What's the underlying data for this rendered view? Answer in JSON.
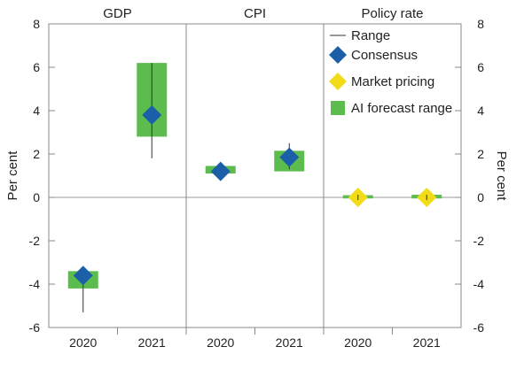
{
  "chart_data": {
    "type": "range",
    "panels": [
      {
        "title": "GDP",
        "items": [
          {
            "year": "2020",
            "range_low": -5.3,
            "range_high": -3.3,
            "consensus": -3.6,
            "ai_low": -4.2,
            "ai_high": -3.4,
            "market": null
          },
          {
            "year": "2021",
            "range_low": 1.8,
            "range_high": 6.2,
            "consensus": 3.8,
            "ai_low": 2.8,
            "ai_high": 6.2,
            "market": null
          }
        ]
      },
      {
        "title": "CPI",
        "items": [
          {
            "year": "2020",
            "range_low": 1.1,
            "range_high": 1.4,
            "consensus": 1.2,
            "ai_low": 1.1,
            "ai_high": 1.45,
            "market": null
          },
          {
            "year": "2021",
            "range_low": 1.3,
            "range_high": 2.5,
            "consensus": 1.85,
            "ai_low": 1.2,
            "ai_high": 2.15,
            "market": null
          }
        ]
      },
      {
        "title": "Policy rate",
        "items": [
          {
            "year": "2020",
            "range_low": -0.05,
            "range_high": 0.05,
            "consensus": null,
            "ai_low": -0.05,
            "ai_high": 0.1,
            "market": 0.0
          },
          {
            "year": "2021",
            "range_low": -0.05,
            "range_high": 0.05,
            "consensus": null,
            "ai_low": -0.05,
            "ai_high": 0.12,
            "market": 0.0
          }
        ]
      }
    ],
    "left_axis": {
      "label": "Per cent",
      "ylim": [
        -6,
        8
      ],
      "ticks": [
        "-6",
        "-4",
        "-2",
        "0",
        "2",
        "4",
        "6",
        "8"
      ],
      "tick_values": [
        -6,
        -4,
        -2,
        0,
        2,
        4,
        6,
        8
      ]
    },
    "right_axis": {
      "label": "Per cent",
      "ylim": [
        -6,
        8
      ],
      "ticks": [
        "-6",
        "-4",
        "-2",
        "0",
        "2",
        "4",
        "6",
        "8"
      ],
      "tick_values": [
        -6,
        -4,
        -2,
        0,
        2,
        4,
        6,
        8
      ]
    },
    "legend": {
      "placement": "top-right",
      "entries": [
        {
          "key": "range",
          "label": "Range"
        },
        {
          "key": "consensus",
          "label": "Consensus"
        },
        {
          "key": "market",
          "label": "Market pricing"
        },
        {
          "key": "ai",
          "label": "AI forecast range"
        }
      ]
    },
    "colors": {
      "range": "#333333",
      "consensus": "#1a5fa8",
      "market": "#f2dc1a",
      "ai": "#5cbd4e",
      "grid": "#999999",
      "divider": "#888888"
    }
  }
}
